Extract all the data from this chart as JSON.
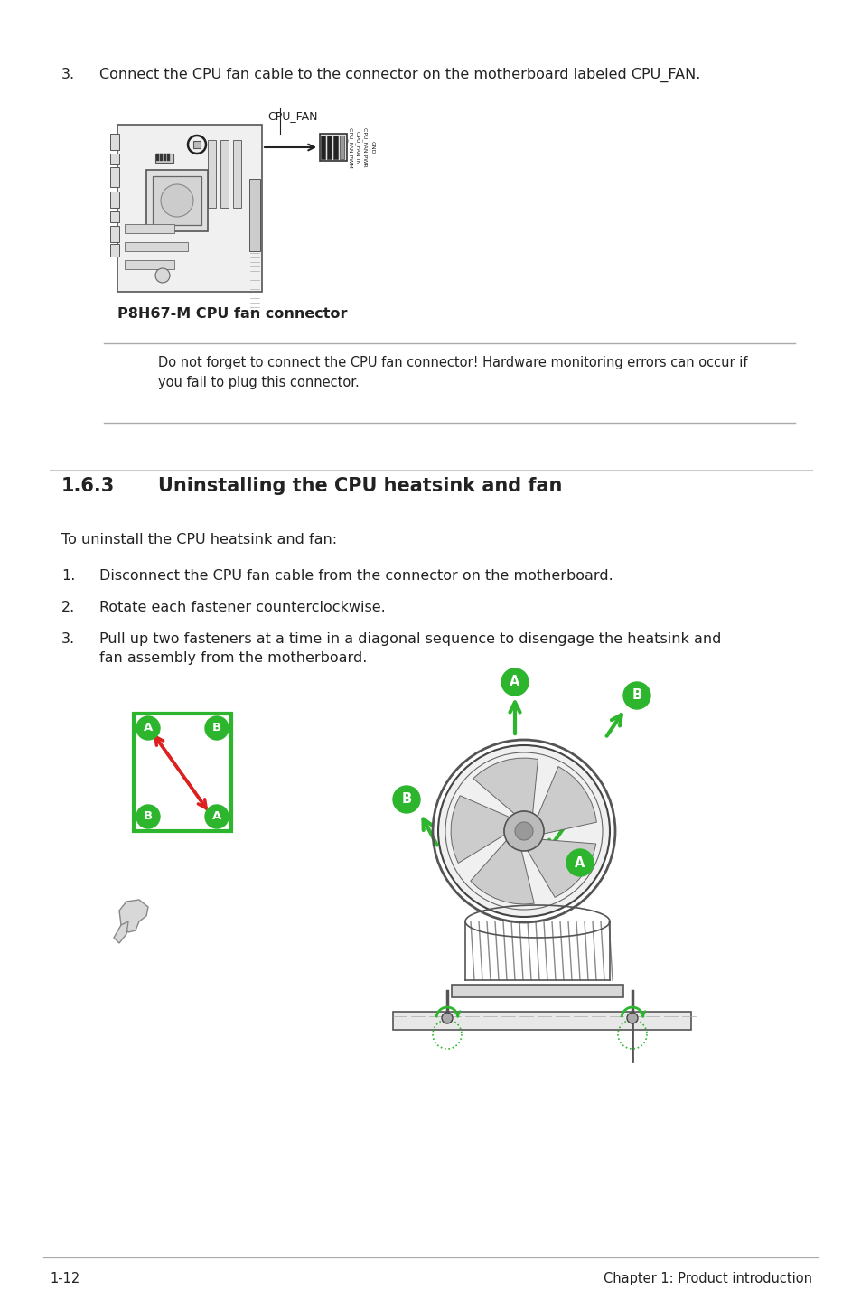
{
  "bg_color": "#ffffff",
  "text_color": "#000000",
  "step3_text": "Connect the CPU fan cable to the connector on the motherboard labeled CPU_FAN.",
  "cpu_fan_label": "CPU_FAN",
  "p8h67_caption": "P8H67-M CPU fan connector",
  "note_text": "Do not forget to connect the CPU fan connector! Hardware monitoring errors can occur if\nyou fail to plug this connector.",
  "section_title": "1.6.3",
  "section_title2": "Uninstalling the CPU heatsink and fan",
  "intro_text": "To uninstall the CPU heatsink and fan:",
  "step1_text": "Disconnect the CPU fan cable from the connector on the motherboard.",
  "step2_text": "Rotate each fastener counterclockwise.",
  "step3b_text": "Pull up two fasteners at a time in a diagonal sequence to disengage the heatsink and\nfan assembly from the motherboard.",
  "footer_left": "1-12",
  "footer_right": "Chapter 1: Product introduction",
  "green_color": "#2db52d",
  "red_color": "#dd2020",
  "gray_line": "#999999",
  "dark": "#222222",
  "mid": "#888888",
  "light": "#cccccc",
  "lighter": "#e8e8e8"
}
